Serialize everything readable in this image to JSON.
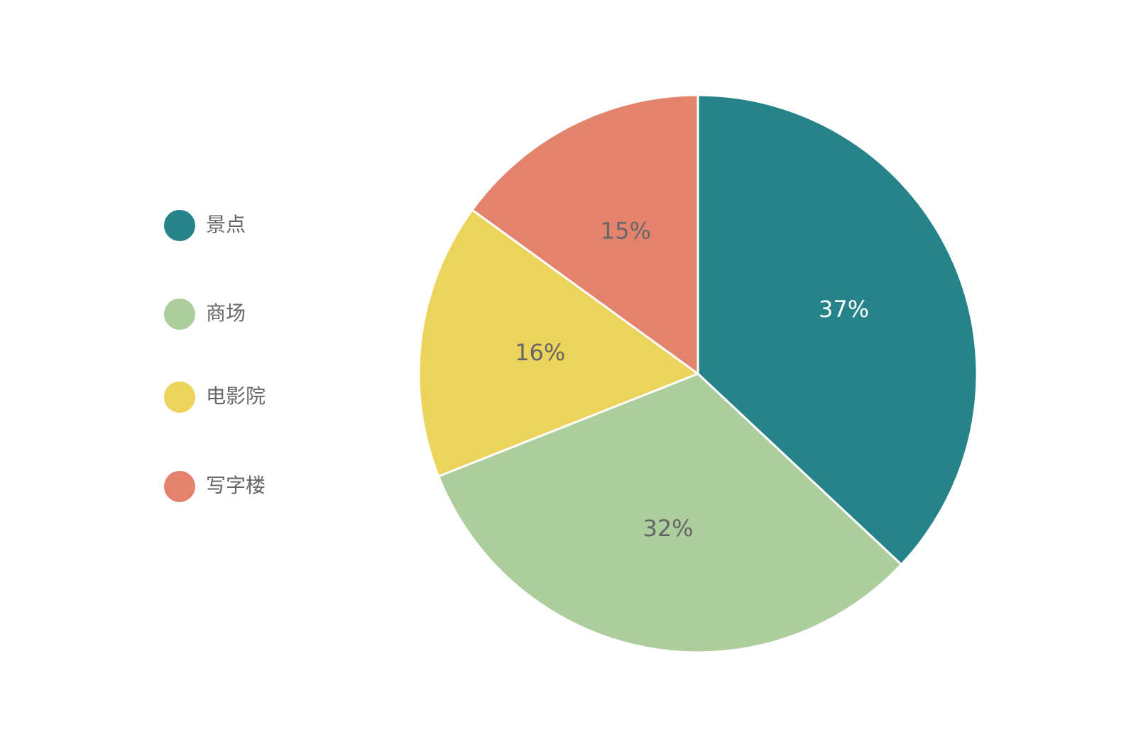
{
  "chart_data": {
    "type": "pie",
    "categories": [
      "景点",
      "商场",
      "电影院",
      "写字楼"
    ],
    "values": [
      37,
      32,
      16,
      15
    ],
    "value_labels": [
      "37%",
      "32%",
      "16%",
      "15%"
    ],
    "colors": [
      "#27838a",
      "#adcd9d",
      "#ecd35b",
      "#e3836d"
    ],
    "legend": "left"
  }
}
